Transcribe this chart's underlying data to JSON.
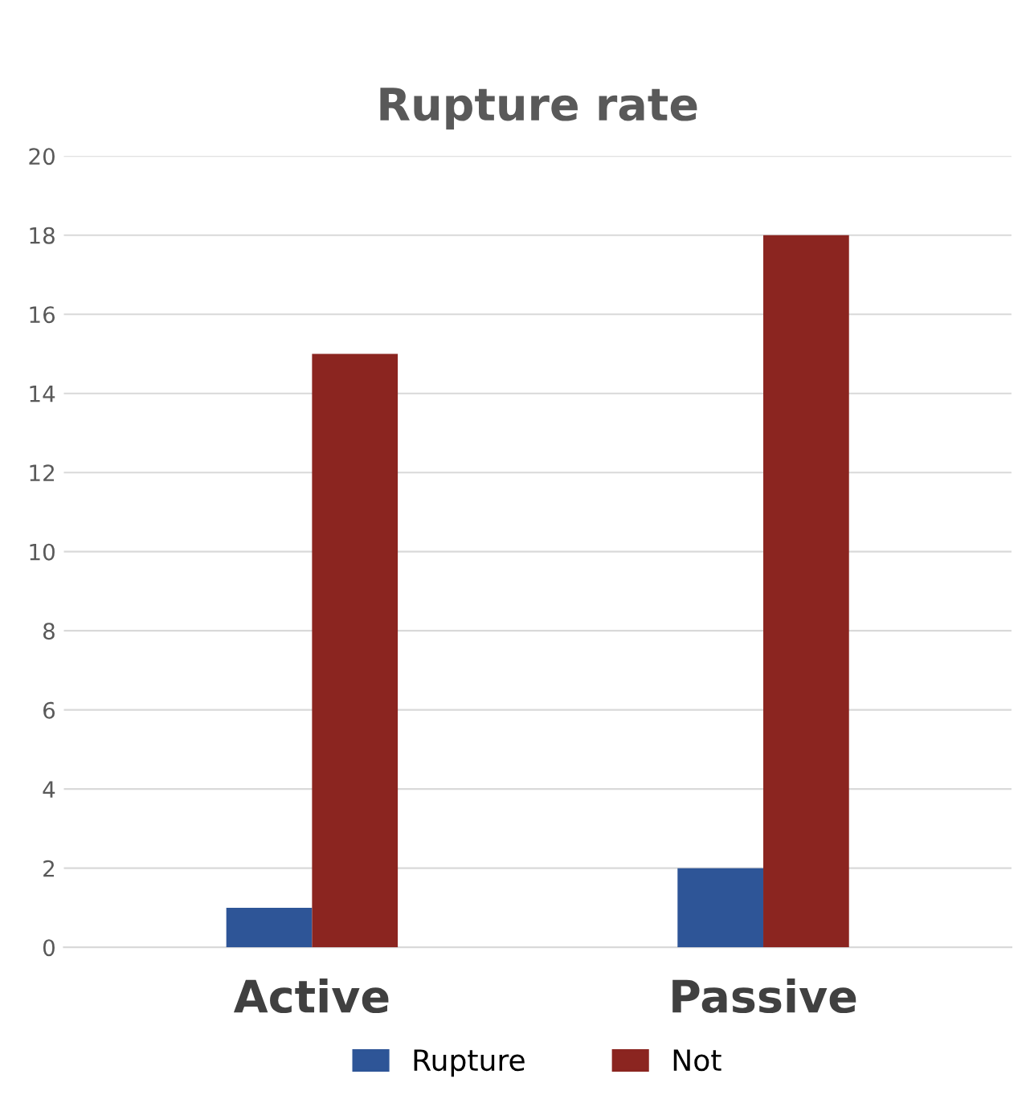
{
  "chart_data": {
    "type": "bar",
    "title": "Rupture rate",
    "categories": [
      "Active",
      "Passive"
    ],
    "series": [
      {
        "name": "Rupture",
        "color": "#2e5597",
        "values": [
          1,
          2
        ]
      },
      {
        "name": "Not",
        "color": "#8b2520",
        "values": [
          15,
          18
        ]
      }
    ],
    "ylim": [
      0,
      20
    ],
    "yticks": [
      0,
      2,
      4,
      6,
      8,
      10,
      12,
      14,
      16,
      18,
      20
    ],
    "grid": "y",
    "legend": "bottom"
  }
}
